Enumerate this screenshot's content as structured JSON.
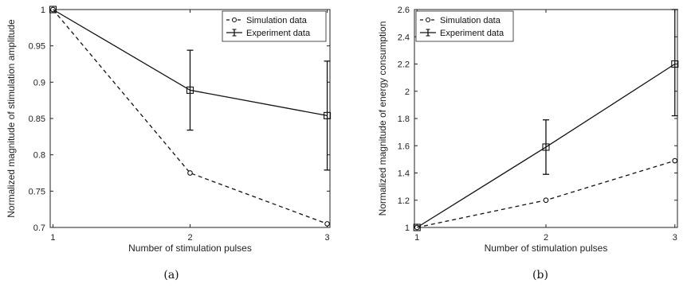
{
  "chart_data": [
    {
      "type": "line",
      "panel": "(a)",
      "xlabel": "Number of stimulation pulses",
      "ylabel": "Normalized magnitude of stimulation amplitude",
      "x": [
        1,
        2,
        3
      ],
      "xlim": [
        0.98,
        3.02
      ],
      "ylim": [
        0.7,
        1.0
      ],
      "xticks": [
        "1",
        "2",
        "3"
      ],
      "yticks": [
        "0.7",
        "0.75",
        "0.8",
        "0.85",
        "0.9",
        "0.95",
        "1"
      ],
      "legend_position": "top-right",
      "grid": false,
      "series": [
        {
          "name": "Simulation data",
          "style": "dashed",
          "marker": "circle",
          "values": [
            1.0,
            0.775,
            0.705
          ]
        },
        {
          "name": "Experiment data",
          "style": "solid",
          "marker": "square",
          "values": [
            1.0,
            0.889,
            0.854
          ],
          "error_low": [
            1.0,
            0.834,
            0.779
          ],
          "error_high": [
            1.0,
            0.944,
            0.929
          ]
        }
      ]
    },
    {
      "type": "line",
      "panel": "(b)",
      "xlabel": "Number of stimulation pulses",
      "ylabel": "Normalized magnitude of energy consumption",
      "x": [
        1,
        2,
        3
      ],
      "xlim": [
        0.98,
        3.02
      ],
      "ylim": [
        1.0,
        2.6
      ],
      "xticks": [
        "1",
        "2",
        "3"
      ],
      "yticks": [
        "1",
        "1.2",
        "1.4",
        "1.6",
        "1.8",
        "2",
        "2.2",
        "2.4",
        "2.6"
      ],
      "legend_position": "top-left",
      "grid": false,
      "series": [
        {
          "name": "Simulation data",
          "style": "dashed",
          "marker": "circle",
          "values": [
            1.0,
            1.2,
            1.49
          ]
        },
        {
          "name": "Experiment data",
          "style": "solid",
          "marker": "square",
          "values": [
            1.0,
            1.59,
            2.2
          ],
          "error_low": [
            1.0,
            1.39,
            1.82
          ],
          "error_high": [
            1.0,
            1.79,
            2.6
          ]
        }
      ]
    }
  ]
}
